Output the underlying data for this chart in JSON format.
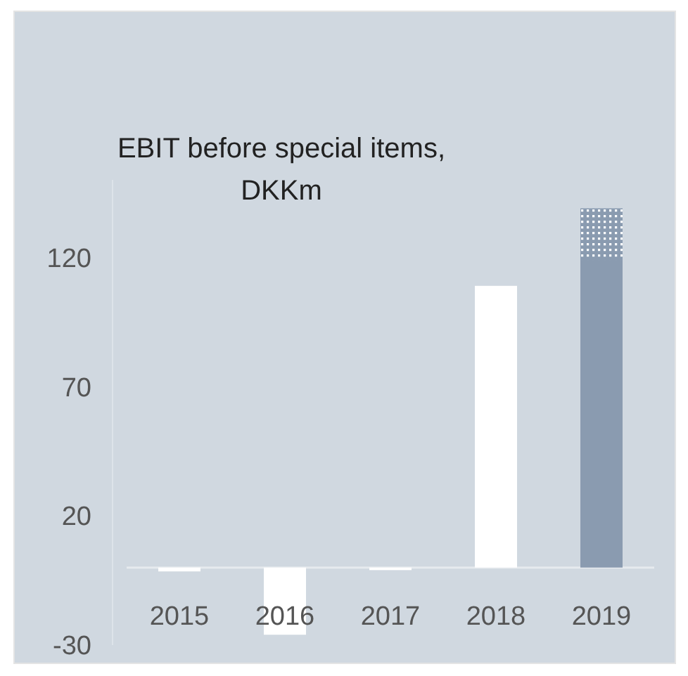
{
  "chart_data": {
    "type": "bar",
    "title": "EBIT before special items, DKKm",
    "categories": [
      "2015",
      "2016",
      "2017",
      "2018",
      "2019"
    ],
    "stacked": true,
    "ylim": [
      -30,
      150
    ],
    "yticks": [
      -30,
      20,
      70,
      120
    ],
    "grid": false,
    "series": [
      {
        "colors": [
          "#ffffff",
          "#ffffff",
          "#ffffff",
          "#ffffff",
          "#8a9bb0"
        ],
        "values": [
          -1.5,
          -26,
          -1,
          109,
          119
        ]
      },
      {
        "color": "#8a9bb0",
        "values": [
          null,
          null,
          null,
          null,
          20
        ]
      }
    ]
  }
}
